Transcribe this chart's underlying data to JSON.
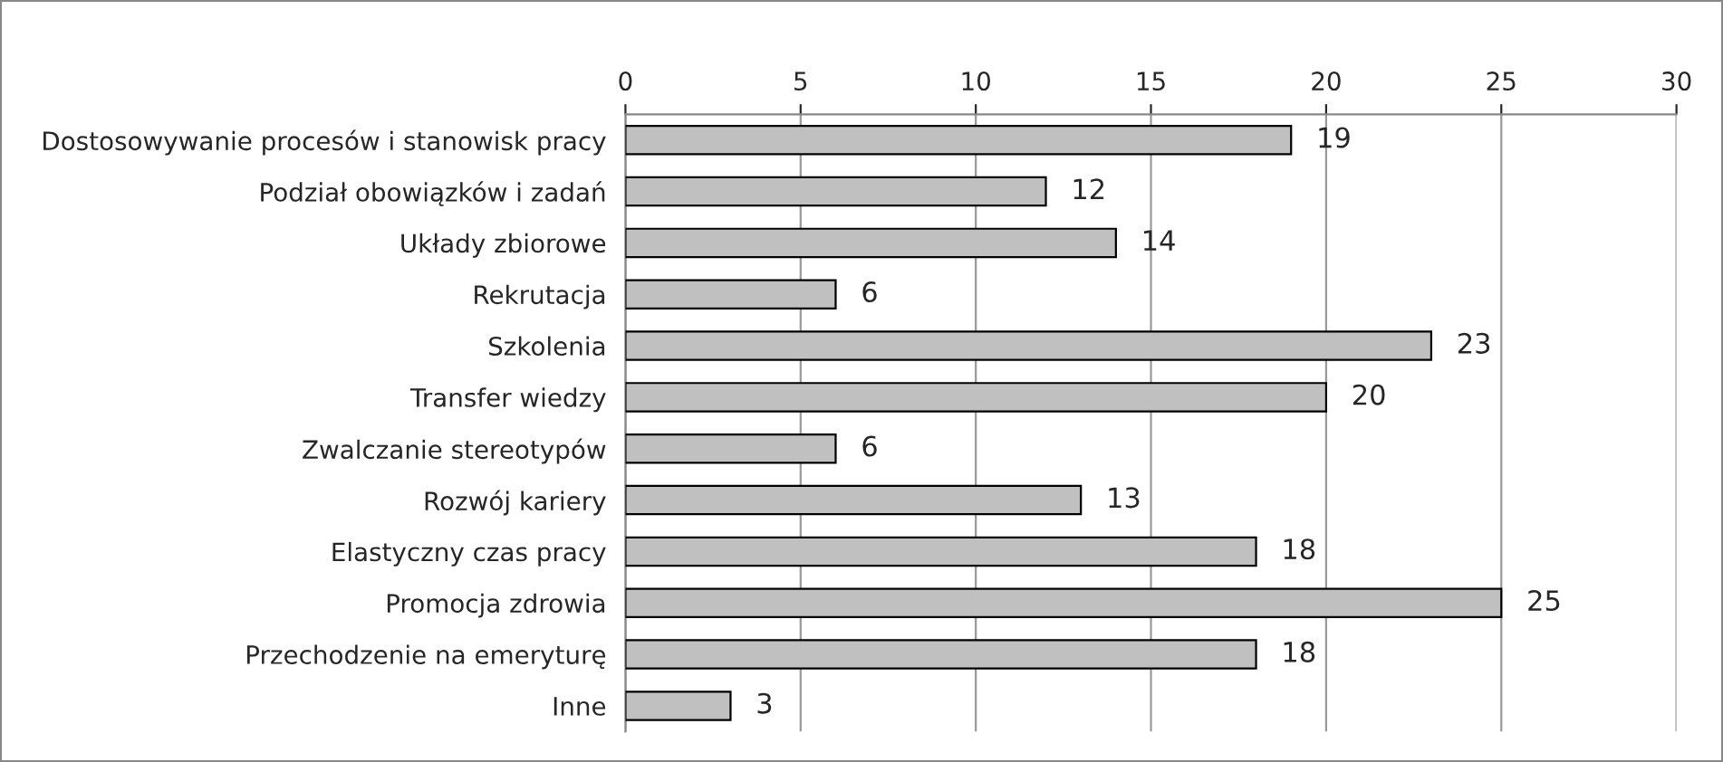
{
  "chart_data": {
    "type": "bar",
    "orientation": "horizontal",
    "categories": [
      "Dostosowywanie procesów i stanowisk pracy",
      "Podział obowiązków i zadań",
      "Układy zbiorowe",
      "Rekrutacja",
      "Szkolenia",
      "Transfer wiedzy",
      "Zwalczanie stereotypów",
      "Rozwój kariery",
      "Elastyczny czas pracy",
      "Promocja zdrowia",
      "Przechodzenie na emeryturę",
      "Inne"
    ],
    "values": [
      19,
      12,
      14,
      6,
      23,
      20,
      6,
      13,
      18,
      25,
      18,
      3
    ],
    "color": "#c0c0c0",
    "xlim": [
      0,
      30
    ],
    "xticks": [
      0,
      5,
      10,
      15,
      20,
      25,
      30
    ],
    "grid": "x",
    "data_labels": true
  }
}
